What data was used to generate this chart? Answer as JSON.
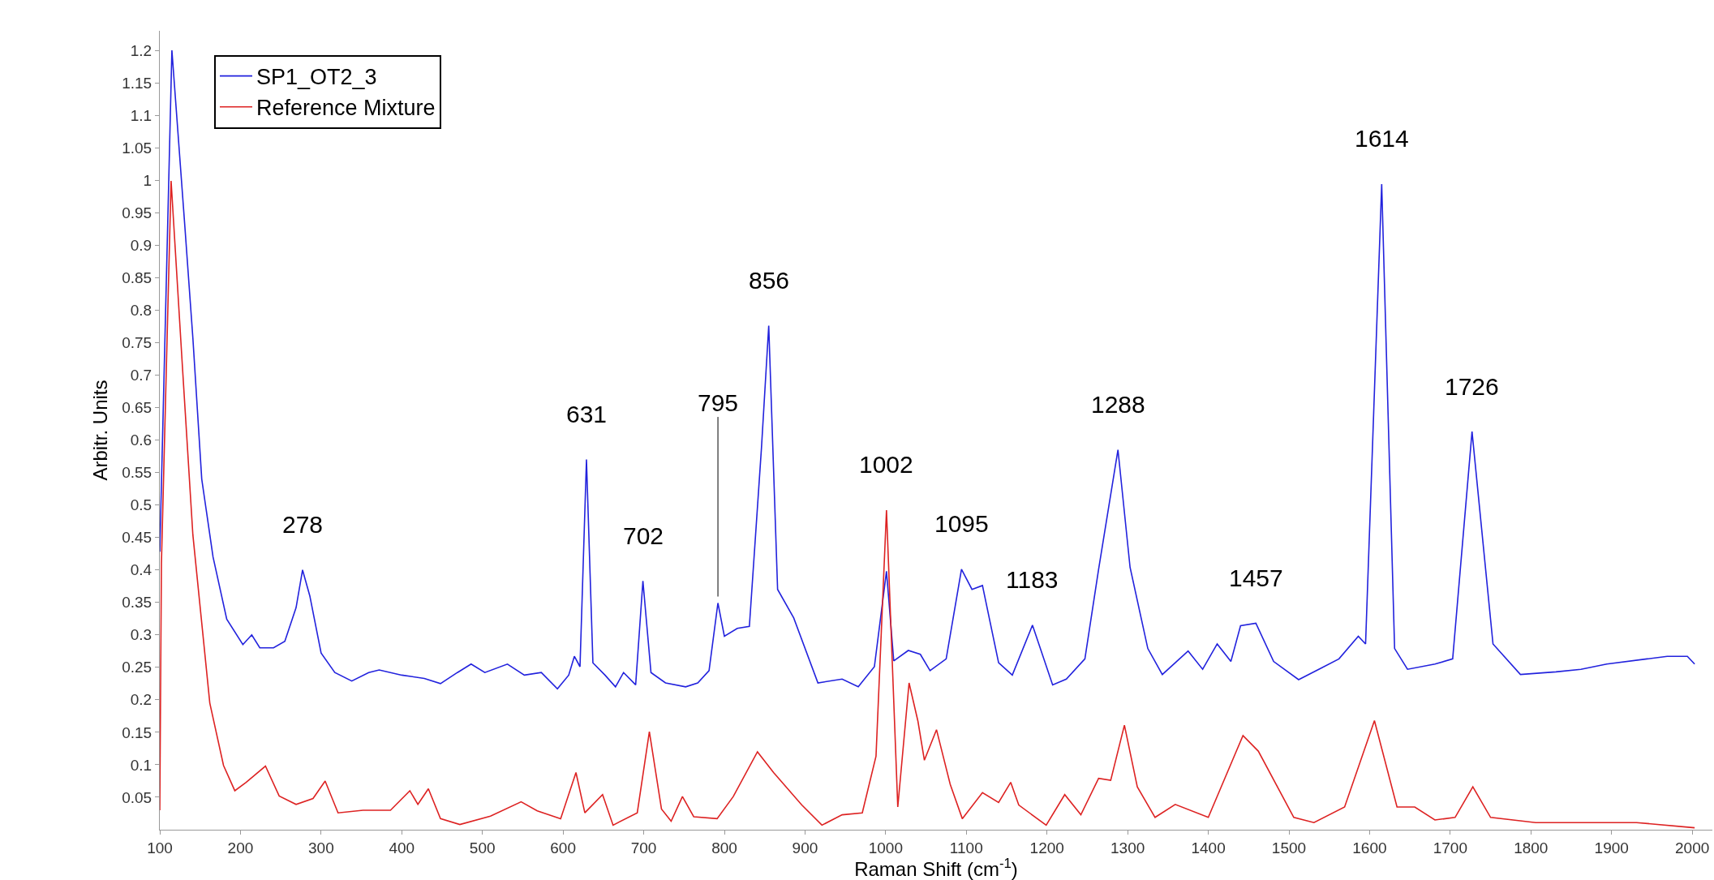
{
  "chart_data": {
    "type": "line",
    "xlabel": "Raman Shift (cm$^{-1}$)",
    "ylabel": "Arbitr. Units",
    "xlim": [
      100,
      2025
    ],
    "xticks": [
      100,
      200,
      300,
      400,
      500,
      600,
      700,
      800,
      900,
      1000,
      1100,
      1200,
      1300,
      1400,
      1500,
      1600,
      1700,
      1800,
      1900,
      2000
    ],
    "ylim": [
      0,
      1.23
    ],
    "yticks": [
      0.05,
      0.1,
      0.15,
      0.2,
      0.25,
      0.3,
      0.35,
      0.4,
      0.45,
      0.5,
      0.55,
      0.6,
      0.65,
      0.7,
      0.75,
      0.8,
      0.85,
      0.9,
      0.95,
      1,
      1.05,
      1.1,
      1.15,
      1.2
    ],
    "grid": false,
    "legend": "top left",
    "marker": "none",
    "line_style": "solid",
    "series": [
      {
        "name": "SP1_OT2_3",
        "color": "#2222dd",
        "x": [
          100,
          115,
          131,
          141,
          152,
          166,
          183,
          203,
          214,
          224,
          241,
          255,
          269,
          277,
          286,
          300,
          317,
          338,
          359,
          372,
          400,
          428,
          448,
          469,
          486,
          503,
          531,
          552,
          573,
          593,
          607,
          614,
          621,
          629,
          637,
          652,
          665,
          675,
          690,
          699,
          709,
          727,
          752,
          767,
          781,
          792,
          800,
          816,
          831,
          846,
          855,
          866,
          886,
          916,
          946,
          966,
          986,
          1001,
          1010,
          1028,
          1043,
          1055,
          1075,
          1094,
          1107,
          1120,
          1140,
          1157,
          1182,
          1207,
          1224,
          1247,
          1264,
          1288,
          1303,
          1325,
          1343,
          1375,
          1393,
          1411,
          1428,
          1440,
          1459,
          1481,
          1512,
          1537,
          1562,
          1586,
          1595,
          1615,
          1631,
          1647,
          1681,
          1703,
          1727,
          1753,
          1787,
          1831,
          1862,
          1894,
          1944,
          1969,
          1994,
          2003
        ],
        "values": [
          0.428,
          1.2,
          0.93,
          0.757,
          0.54,
          0.42,
          0.324,
          0.285,
          0.3,
          0.28,
          0.28,
          0.29,
          0.342,
          0.4,
          0.36,
          0.272,
          0.242,
          0.229,
          0.242,
          0.246,
          0.238,
          0.233,
          0.225,
          0.242,
          0.255,
          0.242,
          0.255,
          0.238,
          0.242,
          0.217,
          0.238,
          0.267,
          0.251,
          0.57,
          0.257,
          0.238,
          0.22,
          0.242,
          0.223,
          0.383,
          0.242,
          0.226,
          0.22,
          0.226,
          0.245,
          0.349,
          0.298,
          0.31,
          0.313,
          0.588,
          0.776,
          0.37,
          0.326,
          0.226,
          0.232,
          0.22,
          0.251,
          0.398,
          0.26,
          0.276,
          0.27,
          0.245,
          0.263,
          0.401,
          0.37,
          0.376,
          0.257,
          0.238,
          0.315,
          0.223,
          0.232,
          0.263,
          0.401,
          0.585,
          0.404,
          0.279,
          0.239,
          0.275,
          0.247,
          0.286,
          0.259,
          0.314,
          0.318,
          0.259,
          0.231,
          0.247,
          0.263,
          0.298,
          0.286,
          0.994,
          0.279,
          0.247,
          0.255,
          0.263,
          0.613,
          0.286,
          0.239,
          0.243,
          0.247,
          0.255,
          0.263,
          0.267,
          0.267,
          0.255
        ]
      },
      {
        "name": "Reference Mixture",
        "color": "#dd2222",
        "x": [
          100,
          102,
          114,
          128,
          141,
          162,
          179,
          193,
          207,
          231,
          248,
          269,
          290,
          305,
          321,
          352,
          386,
          410,
          420,
          433,
          448,
          472,
          510,
          548,
          568,
          597,
          616,
          627,
          649,
          662,
          692,
          707,
          722,
          734,
          748,
          762,
          791,
          811,
          841,
          861,
          896,
          921,
          946,
          971,
          988,
          1001,
          1015,
          1029,
          1040,
          1048,
          1063,
          1080,
          1095,
          1120,
          1140,
          1155,
          1165,
          1199,
          1222,
          1242,
          1264,
          1279,
          1296,
          1312,
          1334,
          1359,
          1400,
          1443,
          1462,
          1506,
          1531,
          1569,
          1606,
          1634,
          1656,
          1681,
          1706,
          1728,
          1750,
          1806,
          1869,
          1931,
          2003
        ],
        "values": [
          0.03,
          0.41,
          0.999,
          0.714,
          0.454,
          0.195,
          0.099,
          0.06,
          0.073,
          0.098,
          0.052,
          0.039,
          0.048,
          0.075,
          0.026,
          0.03,
          0.03,
          0.06,
          0.039,
          0.063,
          0.017,
          0.008,
          0.021,
          0.043,
          0.029,
          0.017,
          0.088,
          0.026,
          0.054,
          0.007,
          0.026,
          0.151,
          0.032,
          0.013,
          0.051,
          0.02,
          0.017,
          0.051,
          0.12,
          0.088,
          0.038,
          0.007,
          0.023,
          0.026,
          0.113,
          0.492,
          0.035,
          0.226,
          0.167,
          0.107,
          0.154,
          0.07,
          0.017,
          0.057,
          0.042,
          0.073,
          0.038,
          0.007,
          0.054,
          0.023,
          0.079,
          0.076,
          0.161,
          0.066,
          0.019,
          0.039,
          0.019,
          0.145,
          0.121,
          0.019,
          0.011,
          0.035,
          0.168,
          0.035,
          0.035,
          0.015,
          0.019,
          0.066,
          0.019,
          0.011,
          0.011,
          0.011,
          0.003
        ]
      }
    ],
    "annotations": [
      {
        "text": "278",
        "x": 277,
        "y": 0.4
      },
      {
        "text": "631",
        "x": 629,
        "y": 0.57
      },
      {
        "text": "702",
        "x": 699,
        "y": 0.383
      },
      {
        "text": "795",
        "x": 792,
        "y": 0.349
      },
      {
        "text": "856",
        "x": 855,
        "y": 0.776
      },
      {
        "text": "1002",
        "x": 1001,
        "y": 0.492
      },
      {
        "text": "1095",
        "x": 1094,
        "y": 0.401
      },
      {
        "text": "1183",
        "x": 1182,
        "y": 0.315
      },
      {
        "text": "1288",
        "x": 1288,
        "y": 0.585
      },
      {
        "text": "1457",
        "x": 1459,
        "y": 0.318
      },
      {
        "text": "1614",
        "x": 1615,
        "y": 0.994
      },
      {
        "text": "1726",
        "x": 1727,
        "y": 0.613
      }
    ]
  }
}
